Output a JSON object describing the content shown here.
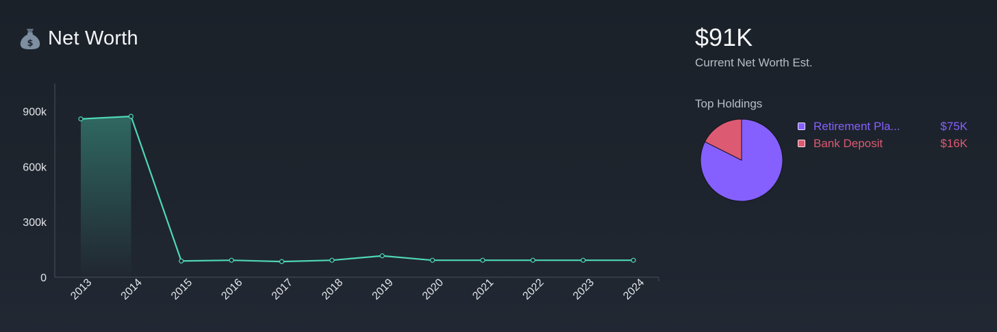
{
  "header": {
    "title": "Net Worth",
    "icon": "money-bag-icon"
  },
  "summary": {
    "value": "$91K",
    "caption": "Current Net Worth Est."
  },
  "holdings": {
    "title": "Top Holdings",
    "items": [
      {
        "label": "Retirement Pla...",
        "value": "$75K",
        "amount": 75,
        "color": "#8560ff"
      },
      {
        "label": "Bank Deposit",
        "value": "$16K",
        "amount": 16,
        "color": "#dc5a72"
      }
    ]
  },
  "colors": {
    "line": "#4ed8b6",
    "axis": "#3d4a52",
    "background": "#1e242d"
  },
  "chart_data": [
    {
      "type": "line",
      "x": [
        "2013",
        "2014",
        "2015",
        "2016",
        "2017",
        "2018",
        "2019",
        "2020",
        "2021",
        "2022",
        "2023",
        "2024"
      ],
      "series": [
        {
          "values": [
            858000,
            872000,
            88000,
            92000,
            85000,
            92000,
            116000,
            92000,
            92000,
            92000,
            92000,
            92000
          ]
        }
      ],
      "yticks": [
        "0",
        "300k",
        "600k",
        "900k"
      ],
      "ytick_values": [
        0,
        300000,
        600000,
        900000
      ],
      "ylim": [
        0,
        1050000
      ],
      "fill_first_segment": true,
      "grid": false,
      "legend": "none"
    },
    {
      "type": "pie",
      "categories": [
        "Retirement Pla...",
        "Bank Deposit"
      ],
      "values": [
        75,
        16
      ]
    }
  ]
}
